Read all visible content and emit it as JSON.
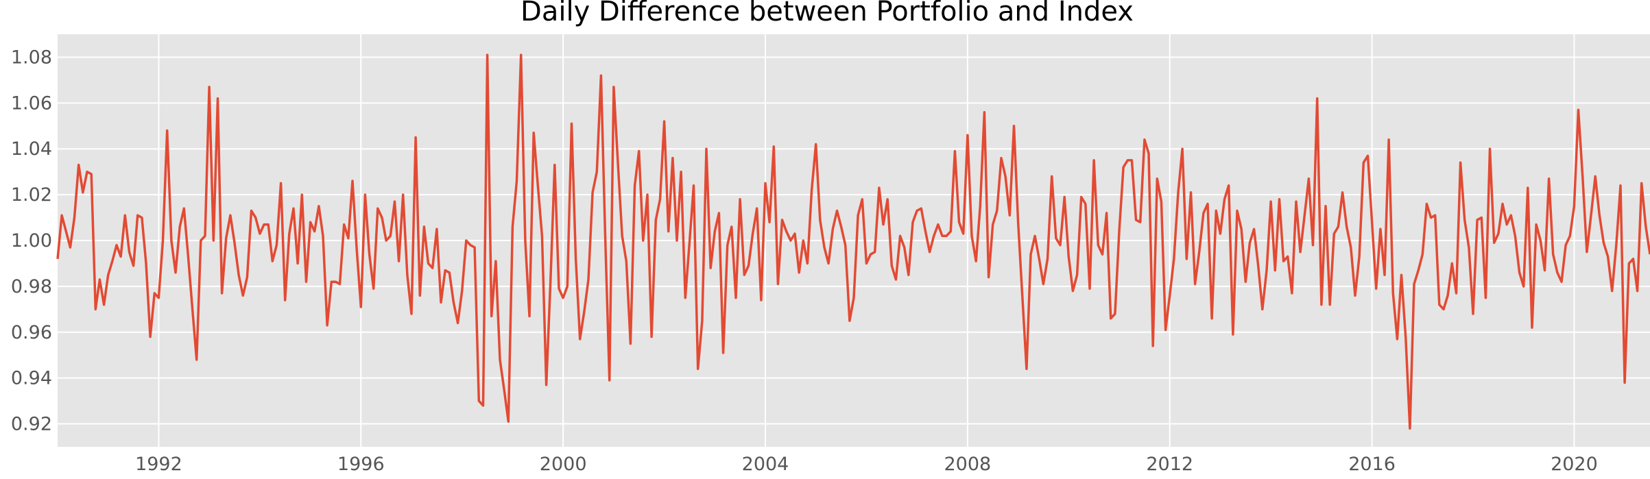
{
  "chart_data": {
    "type": "line",
    "title": "Daily Difference between Portfolio and Index",
    "xlabel": "",
    "ylabel": "",
    "xlim": [
      1990.0,
      2021.5
    ],
    "ylim": [
      0.91,
      1.09
    ],
    "grid": true,
    "legend": null,
    "x_ticks": [
      1992,
      1996,
      2000,
      2004,
      2008,
      2012,
      2016,
      2020
    ],
    "y_ticks": [
      0.92,
      0.94,
      0.96,
      0.98,
      1.0,
      1.02,
      1.04,
      1.06,
      1.08
    ],
    "x_tick_labels": [
      "1992",
      "1996",
      "2000",
      "2004",
      "2008",
      "2012",
      "2016",
      "2020"
    ],
    "y_tick_labels": [
      "0.92",
      "0.94",
      "0.96",
      "0.98",
      "1.00",
      "1.02",
      "1.04",
      "1.06",
      "1.08"
    ],
    "colors": {
      "line": "#e24a33",
      "plot_background": "#e5e5e5",
      "grid": "#ffffff",
      "tick_text": "#555555",
      "title_text": "#000000"
    },
    "series": [
      {
        "x": [
          1990.0,
          1990.083,
          1990.167,
          1990.25,
          1990.333,
          1990.417,
          1990.5,
          1990.583,
          1990.667,
          1990.75,
          1990.833,
          1990.917,
          1991.0,
          1991.083,
          1991.167,
          1991.25,
          1991.333,
          1991.417,
          1991.5,
          1991.583,
          1991.667,
          1991.75,
          1991.833,
          1991.917,
          1992.0,
          1992.083,
          1992.167,
          1992.25,
          1992.333,
          1992.417,
          1992.5,
          1992.583,
          1992.667,
          1992.75,
          1992.833,
          1992.917,
          1993.0,
          1993.083,
          1993.167,
          1993.25,
          1993.333,
          1993.417,
          1993.5,
          1993.583,
          1993.667,
          1993.75,
          1993.833,
          1993.917,
          1994.0,
          1994.083,
          1994.167,
          1994.25,
          1994.333,
          1994.417,
          1994.5,
          1994.583,
          1994.667,
          1994.75,
          1994.833,
          1994.917,
          1995.0,
          1995.083,
          1995.167,
          1995.25,
          1995.333,
          1995.417,
          1995.5,
          1995.583,
          1995.667,
          1995.75,
          1995.833,
          1995.917,
          1996.0,
          1996.083,
          1996.167,
          1996.25,
          1996.333,
          1996.417,
          1996.5,
          1996.583,
          1996.667,
          1996.75,
          1996.833,
          1996.917,
          1997.0,
          1997.083,
          1997.167,
          1997.25,
          1997.333,
          1997.417,
          1997.5,
          1997.583,
          1997.667,
          1997.75,
          1997.833,
          1997.917,
          1998.0,
          1998.083,
          1998.167,
          1998.25,
          1998.333,
          1998.417,
          1998.5,
          1998.583,
          1998.667,
          1998.75,
          1998.833,
          1998.917,
          1999.0,
          1999.083,
          1999.167,
          1999.25,
          1999.333,
          1999.417,
          1999.5,
          1999.583,
          1999.667,
          1999.75,
          1999.833,
          1999.917,
          2000.0,
          2000.083,
          2000.167,
          2000.25,
          2000.333,
          2000.417,
          2000.5,
          2000.583,
          2000.667,
          2000.75,
          2000.833,
          2000.917,
          2001.0,
          2001.083,
          2001.167,
          2001.25,
          2001.333,
          2001.417,
          2001.5,
          2001.583,
          2001.667,
          2001.75,
          2001.833,
          2001.917,
          2002.0,
          2002.083,
          2002.167,
          2002.25,
          2002.333,
          2002.417,
          2002.5,
          2002.583,
          2002.667,
          2002.75,
          2002.833,
          2002.917,
          2003.0,
          2003.083,
          2003.167,
          2003.25,
          2003.333,
          2003.417,
          2003.5,
          2003.583,
          2003.667,
          2003.75,
          2003.833,
          2003.917,
          2004.0,
          2004.083,
          2004.167,
          2004.25,
          2004.333,
          2004.417,
          2004.5,
          2004.583,
          2004.667,
          2004.75,
          2004.833,
          2004.917,
          2005.0,
          2005.083,
          2005.167,
          2005.25,
          2005.333,
          2005.417,
          2005.5,
          2005.583,
          2005.667,
          2005.75,
          2005.833,
          2005.917,
          2006.0,
          2006.083,
          2006.167,
          2006.25,
          2006.333,
          2006.417,
          2006.5,
          2006.583,
          2006.667,
          2006.75,
          2006.833,
          2006.917,
          2007.0,
          2007.083,
          2007.167,
          2007.25,
          2007.333,
          2007.417,
          2007.5,
          2007.583,
          2007.667,
          2007.75,
          2007.833,
          2007.917,
          2008.0,
          2008.083,
          2008.167,
          2008.25,
          2008.333,
          2008.417,
          2008.5,
          2008.583,
          2008.667,
          2008.75,
          2008.833,
          2008.917,
          2009.0,
          2009.083,
          2009.167,
          2009.25,
          2009.333,
          2009.417,
          2009.5,
          2009.583,
          2009.667,
          2009.75,
          2009.833,
          2009.917,
          2010.0,
          2010.083,
          2010.167,
          2010.25,
          2010.333,
          2010.417,
          2010.5,
          2010.583,
          2010.667,
          2010.75,
          2010.833,
          2010.917,
          2011.0,
          2011.083,
          2011.167,
          2011.25,
          2011.333,
          2011.417,
          2011.5,
          2011.583,
          2011.667,
          2011.75,
          2011.833,
          2011.917,
          2012.0,
          2012.083,
          2012.167,
          2012.25,
          2012.333,
          2012.417,
          2012.5,
          2012.583,
          2012.667,
          2012.75,
          2012.833,
          2012.917,
          2013.0,
          2013.083,
          2013.167,
          2013.25,
          2013.333,
          2013.417,
          2013.5,
          2013.583,
          2013.667,
          2013.75,
          2013.833,
          2013.917,
          2014.0,
          2014.083,
          2014.167,
          2014.25,
          2014.333,
          2014.417,
          2014.5,
          2014.583,
          2014.667,
          2014.75,
          2014.833,
          2014.917,
          2015.0,
          2015.083,
          2015.167,
          2015.25,
          2015.333,
          2015.417,
          2015.5,
          2015.583,
          2015.667,
          2015.75,
          2015.833,
          2015.917,
          2016.0,
          2016.083,
          2016.167,
          2016.25,
          2016.333,
          2016.417,
          2016.5,
          2016.583,
          2016.667,
          2016.75,
          2016.833,
          2016.917,
          2017.0,
          2017.083,
          2017.167,
          2017.25,
          2017.333,
          2017.417,
          2017.5,
          2017.583,
          2017.667,
          2017.75,
          2017.833,
          2017.917,
          2018.0,
          2018.083,
          2018.167,
          2018.25,
          2018.333,
          2018.417,
          2018.5,
          2018.583,
          2018.667,
          2018.75,
          2018.833,
          2018.917,
          2019.0,
          2019.083,
          2019.167,
          2019.25,
          2019.333,
          2019.417,
          2019.5,
          2019.583,
          2019.667,
          2019.75,
          2019.833,
          2019.917,
          2020.0,
          2020.083,
          2020.167,
          2020.25,
          2020.333,
          2020.417,
          2020.5,
          2020.583,
          2020.667,
          2020.75,
          2020.833,
          2020.917,
          2021.0,
          2021.083,
          2021.167,
          2021.25,
          2021.333,
          2021.417,
          2021.5
        ],
        "y": [
          0.992,
          1.011,
          1.004,
          0.997,
          1.01,
          1.033,
          1.021,
          1.03,
          1.029,
          0.97,
          0.983,
          0.972,
          0.985,
          0.991,
          0.998,
          0.993,
          1.011,
          0.995,
          0.989,
          1.011,
          1.01,
          0.99,
          0.958,
          0.977,
          0.975,
          1.0,
          1.048,
          1.0,
          0.986,
          1.006,
          1.014,
          0.993,
          0.97,
          0.948,
          1.0,
          1.002,
          1.067,
          1.0,
          1.062,
          0.977,
          1.001,
          1.011,
          0.999,
          0.985,
          0.976,
          0.984,
          1.013,
          1.01,
          1.003,
          1.007,
          1.007,
          0.991,
          0.998,
          1.025,
          0.974,
          1.003,
          1.014,
          0.99,
          1.02,
          0.982,
          1.008,
          1.004,
          1.015,
          1.002,
          0.963,
          0.982,
          0.982,
          0.981,
          1.007,
          1.001,
          1.026,
          0.996,
          0.971,
          1.02,
          0.994,
          0.979,
          1.014,
          1.01,
          1.0,
          1.002,
          1.017,
          0.991,
          1.02,
          0.985,
          0.968,
          1.045,
          0.976,
          1.006,
          0.99,
          0.988,
          1.005,
          0.973,
          0.987,
          0.986,
          0.973,
          0.964,
          0.978,
          1.0,
          0.998,
          0.997,
          0.93,
          0.928,
          1.081,
          0.967,
          0.991,
          0.948,
          0.935,
          0.921,
          1.006,
          1.026,
          1.081,
          1.0,
          0.967,
          1.047,
          1.024,
          1.002,
          0.937,
          0.982,
          1.033,
          0.979,
          0.975,
          0.98,
          1.051,
          0.992,
          0.957,
          0.969,
          0.983,
          1.021,
          1.03,
          1.072,
          1.002,
          0.939,
          1.067,
          1.034,
          1.002,
          0.991,
          0.955,
          1.024,
          1.039,
          1.0,
          1.02,
          0.958,
          1.009,
          1.018,
          1.052,
          1.004,
          1.036,
          1.0,
          1.03,
          0.975,
          0.999,
          1.024,
          0.944,
          0.965,
          1.04,
          0.988,
          1.004,
          1.012,
          0.951,
          0.998,
          1.006,
          0.975,
          1.018,
          0.985,
          0.989,
          1.003,
          1.014,
          0.974,
          1.025,
          1.008,
          1.041,
          0.981,
          1.009,
          1.004,
          1.0,
          1.003,
          0.986,
          1.0,
          0.99,
          1.022,
          1.042,
          1.009,
          0.997,
          0.99,
          1.005,
          1.013,
          1.006,
          0.998,
          0.965,
          0.975,
          1.011,
          1.018,
          0.99,
          0.994,
          0.995,
          1.023,
          1.007,
          1.018,
          0.989,
          0.983,
          1.002,
          0.997,
          0.985,
          1.008,
          1.013,
          1.014,
          1.004,
          0.995,
          1.002,
          1.007,
          1.002,
          1.002,
          1.004,
          1.039,
          1.008,
          1.003,
          1.046,
          1.002,
          0.991,
          1.015,
          1.056,
          0.984,
          1.007,
          1.013,
          1.036,
          1.028,
          1.011,
          1.05,
          1.008,
          0.976,
          0.944,
          0.994,
          1.002,
          0.992,
          0.981,
          0.992,
          1.028,
          1.001,
          0.998,
          1.019,
          0.993,
          0.978,
          0.985,
          1.019,
          1.016,
          0.979,
          1.035,
          0.998,
          0.994,
          1.012,
          0.966,
          0.968,
          1.004,
          1.032,
          1.035,
          1.035,
          1.009,
          1.008,
          1.044,
          1.038,
          0.954,
          1.027,
          1.017,
          0.961,
          0.976,
          0.992,
          1.021,
          1.04,
          0.992,
          1.021,
          0.981,
          0.995,
          1.012,
          1.016,
          0.966,
          1.013,
          1.003,
          1.018,
          1.024,
          0.959,
          1.013,
          1.005,
          0.982,
          0.999,
          1.005,
          0.989,
          0.97,
          0.987,
          1.017,
          0.987,
          1.018,
          0.991,
          0.993,
          0.977,
          1.017,
          0.995,
          1.011,
          1.027,
          0.998,
          1.062,
          0.972,
          1.015,
          0.972,
          1.003,
          1.006,
          1.021,
          1.006,
          0.997,
          0.976,
          0.993,
          1.034,
          1.037,
          1.008,
          0.979,
          1.005,
          0.985,
          1.044,
          0.977,
          0.957,
          0.985,
          0.958,
          0.918,
          0.981,
          0.987,
          0.994,
          1.016,
          1.01,
          1.011,
          0.972,
          0.97,
          0.976,
          0.99,
          0.977,
          1.034,
          1.009,
          0.997,
          0.968,
          1.009,
          1.01,
          0.975,
          1.04,
          0.999,
          1.003,
          1.016,
          1.007,
          1.011,
          1.002,
          0.986,
          0.98,
          1.023,
          0.962,
          1.007,
          1.0,
          0.987,
          1.027,
          0.994,
          0.986,
          0.982,
          0.998,
          1.002,
          1.015,
          1.057,
          1.028,
          0.995,
          1.011,
          1.028,
          1.011,
          0.999,
          0.993,
          0.978,
          0.998,
          1.024,
          0.938,
          0.99,
          0.992,
          0.978,
          1.025,
          1.006,
          0.994
        ]
      }
    ]
  }
}
